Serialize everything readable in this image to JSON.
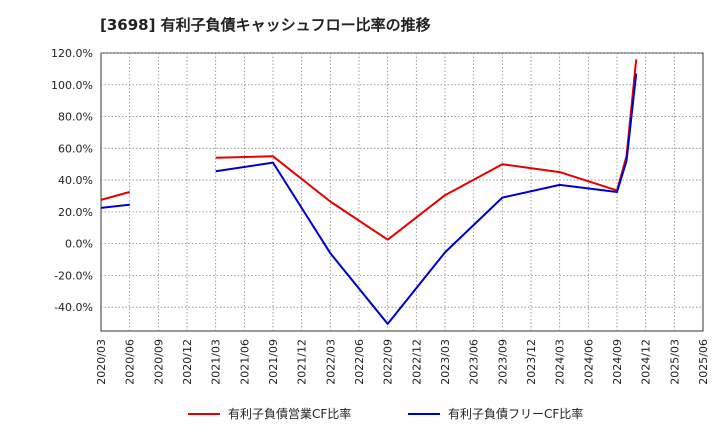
{
  "chart_data": {
    "type": "line",
    "title": "[3698]  有利子負債キャッシュフロー比率の推移",
    "xlabel": "",
    "ylabel": "",
    "ylim": [
      -55,
      120
    ],
    "y_ticks": [
      "120.0%",
      "100.0%",
      "80.0%",
      "60.0%",
      "40.0%",
      "20.0%",
      "0.0%",
      "-20.0%",
      "-40.0%"
    ],
    "y_tick_values": [
      120,
      100,
      80,
      60,
      40,
      20,
      0,
      -20,
      -40
    ],
    "x_ticks": [
      "2020/03",
      "2020/06",
      "2020/09",
      "2020/12",
      "2021/03",
      "2021/06",
      "2021/09",
      "2021/12",
      "2022/03",
      "2022/06",
      "2022/09",
      "2022/12",
      "2023/03",
      "2023/06",
      "2023/09",
      "2023/12",
      "2024/03",
      "2024/06",
      "2024/09",
      "2024/12",
      "2025/03",
      "2025/06"
    ],
    "grid": true,
    "legend_position": "bottom",
    "series": [
      {
        "name": "有利子負債営業CF比率",
        "color": "#e60000",
        "segments": [
          [
            [
              0,
              27.5
            ],
            [
              1,
              32.5
            ]
          ],
          [
            [
              4,
              54
            ],
            [
              6,
              55
            ],
            [
              8,
              26.5
            ],
            [
              10,
              2.5
            ],
            [
              12,
              30.5
            ],
            [
              14,
              50
            ],
            [
              16,
              45
            ],
            [
              18,
              33.5
            ],
            [
              18.33,
              55
            ],
            [
              18.67,
              116
            ]
          ]
        ]
      },
      {
        "name": "有利子負債フリーCF比率",
        "color": "#0000cc",
        "segments": [
          [
            [
              0,
              22.5
            ],
            [
              1,
              24.5
            ]
          ],
          [
            [
              4,
              45.5
            ],
            [
              6,
              51
            ],
            [
              8,
              -6
            ],
            [
              10,
              -50.5
            ],
            [
              12,
              -5.5
            ],
            [
              14,
              29
            ],
            [
              16,
              37
            ],
            [
              18,
              32.5
            ],
            [
              18.33,
              52
            ],
            [
              18.67,
              107
            ]
          ]
        ]
      }
    ]
  }
}
